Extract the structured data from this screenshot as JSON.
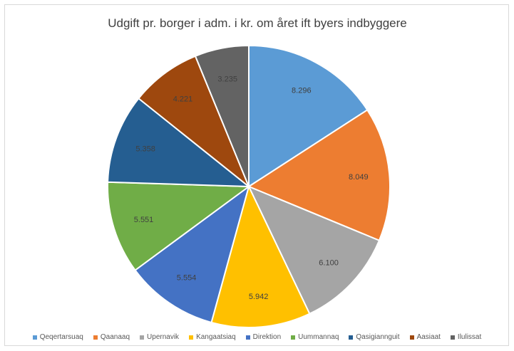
{
  "chart_data": {
    "type": "pie",
    "title": "Udgift pr. borger i adm. i kr. om året ift byers indbyggere",
    "categories": [
      "Qeqertarsuaq",
      "Qaanaaq",
      "Upernavik",
      "Kangaatsiaq",
      "Direktion",
      "Uummannaq",
      "Qasigiannguit",
      "Aasiaat",
      "Ilulissat"
    ],
    "values": [
      8296,
      8049,
      6100,
      5942,
      5554,
      5551,
      5358,
      4221,
      3235
    ],
    "value_labels": [
      "8.296",
      "8.049",
      "6.100",
      "5.942",
      "5.554",
      "5.551",
      "5.358",
      "4.221",
      "3.235"
    ],
    "colors": [
      "#5b9bd5",
      "#ed7d31",
      "#a5a5a5",
      "#ffc000",
      "#4472c4",
      "#70ad47",
      "#255e91",
      "#9e480e",
      "#636363"
    ],
    "legend_position": "bottom"
  }
}
